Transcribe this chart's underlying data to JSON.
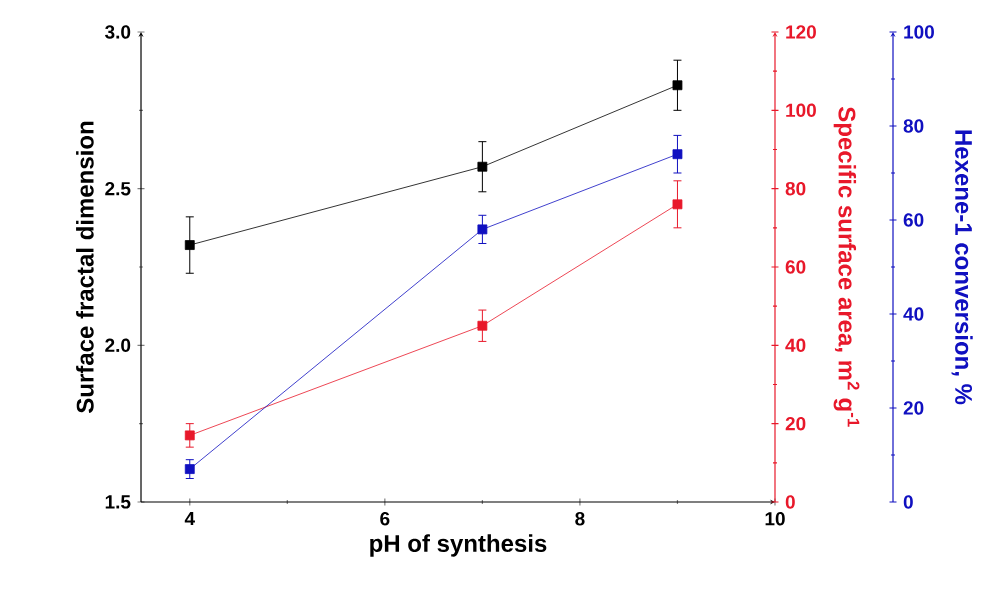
{
  "chart_data": {
    "type": "line",
    "marker": "square",
    "xlabel": "pH of synthesis",
    "ylabel": "Surface fractal dimension",
    "y2label": "Specific surface area, m$^{2}$ g$^{-1}$",
    "y3label": "Hexene-1 conversion, %",
    "xlim": [
      3.5,
      10
    ],
    "xticks": [
      4,
      6,
      8,
      10
    ],
    "ylim": [
      1.5,
      3.0
    ],
    "yticks": [
      1.5,
      {
        "value": 2.0,
        "label": "2.0"
      },
      2.5,
      {
        "value": 3.0,
        "label": "3.0"
      }
    ],
    "y2lim": [
      0,
      120
    ],
    "y2ticks": [
      0,
      20,
      40,
      60,
      80,
      100,
      120
    ],
    "y3lim": [
      0,
      100
    ],
    "y3ticks": [
      0,
      20,
      40,
      60,
      80,
      100
    ],
    "x": [
      4,
      7,
      9
    ],
    "series": [
      {
        "color": "#000000",
        "values": [
          2.32,
          2.57,
          2.83
        ],
        "errors": [
          0.09,
          0.08,
          0.08
        ]
      },
      {
        "color": "#e8182a",
        "axis": "y2",
        "values": [
          17,
          45,
          76
        ],
        "errors": [
          3,
          4,
          6
        ]
      },
      {
        "color": "#1010c0",
        "axis": "y3",
        "values": [
          7,
          58,
          74
        ],
        "errors": [
          2,
          3,
          4
        ]
      }
    ]
  }
}
